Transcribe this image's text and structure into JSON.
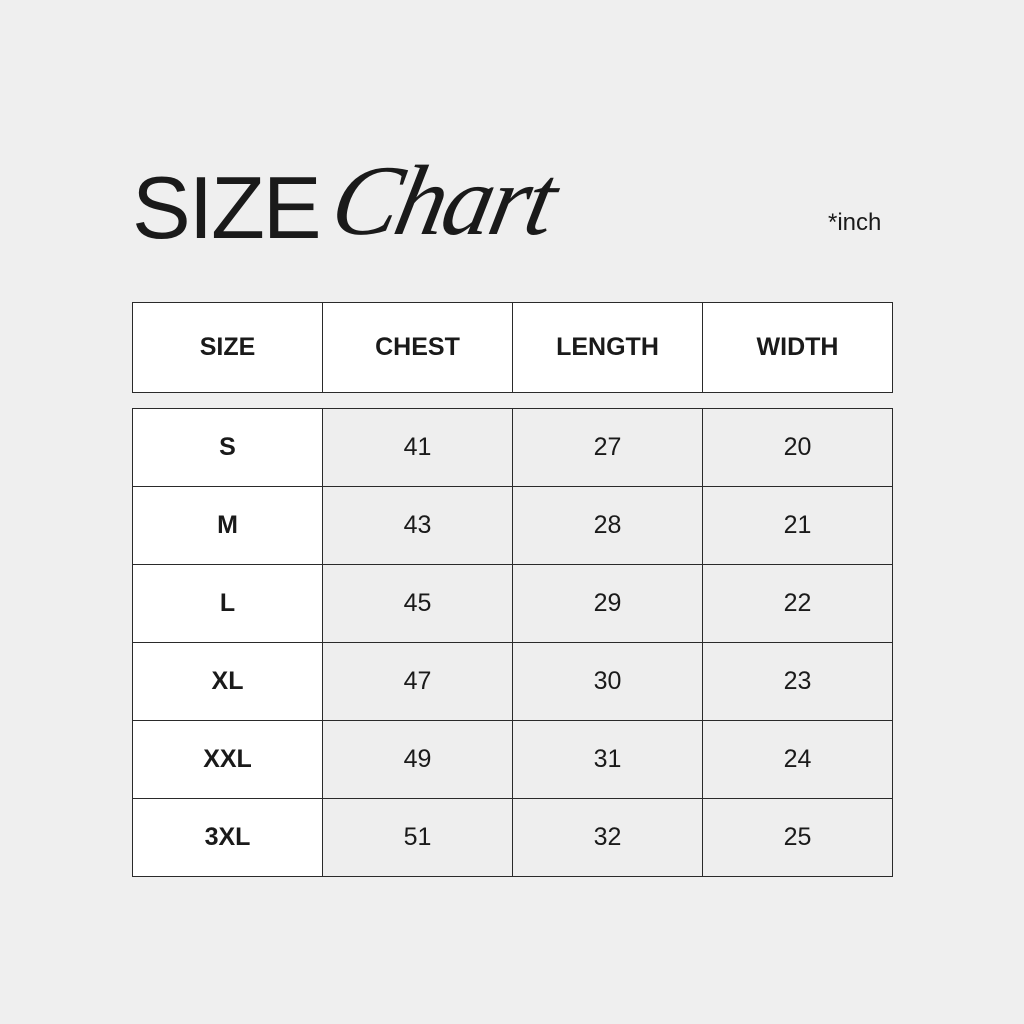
{
  "title": {
    "word1": "SIZE",
    "word2": "Chart"
  },
  "unit_note": "*inch",
  "chart_data": {
    "type": "table",
    "columns": [
      "SIZE",
      "CHEST",
      "LENGTH",
      "WIDTH"
    ],
    "rows": [
      [
        "S",
        "41",
        "27",
        "20"
      ],
      [
        "M",
        "43",
        "28",
        "21"
      ],
      [
        "L",
        "45",
        "29",
        "22"
      ],
      [
        "XL",
        "47",
        "30",
        "23"
      ],
      [
        "XXL",
        "49",
        "31",
        "24"
      ],
      [
        "3XL",
        "51",
        "32",
        "25"
      ]
    ]
  },
  "colors": {
    "background": "#efefef",
    "header_cell": "#ffffff",
    "border": "#2a2a2a",
    "text": "#1a1a1a"
  }
}
